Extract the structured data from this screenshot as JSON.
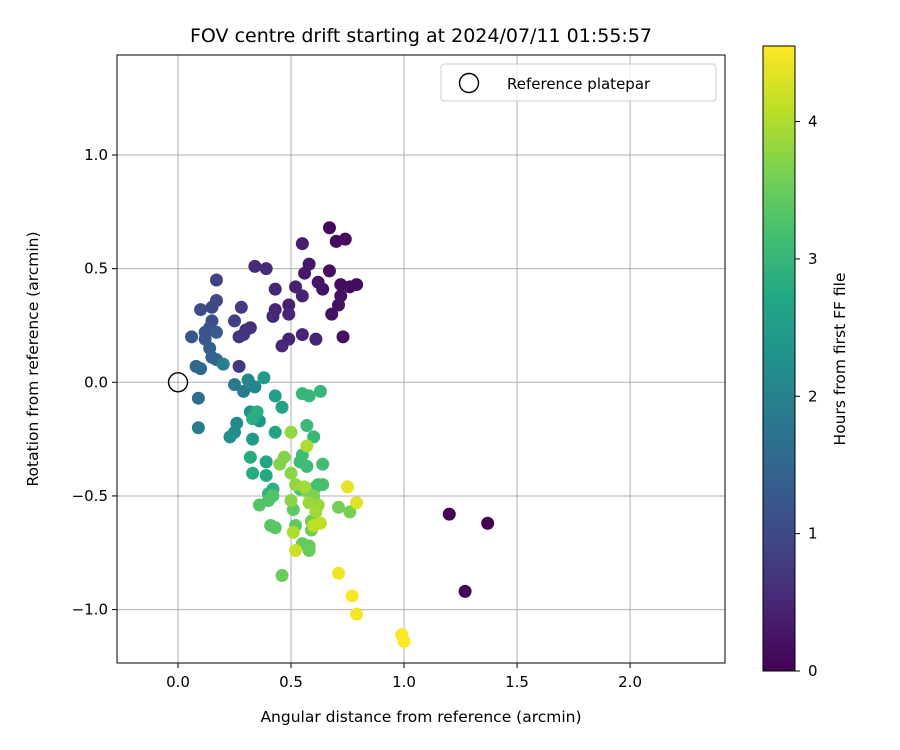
{
  "chart_data": {
    "type": "scatter",
    "title": "FOV centre drift starting at 2024/07/11 01:55:57",
    "xlabel": "Angular distance from reference (arcmin)",
    "ylabel": "Rotation from reference (arcmin)",
    "xlim": [
      -0.27,
      2.42
    ],
    "ylim": [
      -1.235,
      1.44
    ],
    "x_ticks": [
      0.0,
      0.5,
      1.0,
      1.5,
      2.0
    ],
    "x_tick_labels": [
      "0.0",
      "0.5",
      "1.0",
      "1.5",
      "2.0"
    ],
    "y_ticks": [
      -1.0,
      -0.5,
      0.0,
      0.5,
      1.0
    ],
    "y_tick_labels": [
      "−1.0",
      "−0.5",
      "0.0",
      "0.5",
      "1.0"
    ],
    "grid": true,
    "legend": {
      "placement": "top-right",
      "entries": [
        "Reference platepar"
      ]
    },
    "reference_point": {
      "x": 0.0,
      "y": 0.0,
      "marker": "hollow-circle"
    },
    "colorbar": {
      "label": "Hours from first FF file",
      "colormap": "viridis",
      "range": [
        0,
        4.55
      ],
      "ticks": [
        0,
        1,
        2,
        3,
        4
      ],
      "tick_labels": [
        "0",
        "1",
        "2",
        "3",
        "4"
      ]
    },
    "points": [
      {
        "x": 1.2,
        "y": -0.58,
        "c": 0.0
      },
      {
        "x": 1.37,
        "y": -0.62,
        "c": 0.0
      },
      {
        "x": 1.27,
        "y": -0.92,
        "c": 0.05
      },
      {
        "x": 0.67,
        "y": 0.68,
        "c": 0.1
      },
      {
        "x": 0.74,
        "y": 0.63,
        "c": 0.12
      },
      {
        "x": 0.7,
        "y": 0.62,
        "c": 0.12
      },
      {
        "x": 0.67,
        "y": 0.49,
        "c": 0.15
      },
      {
        "x": 0.72,
        "y": 0.43,
        "c": 0.15
      },
      {
        "x": 0.76,
        "y": 0.42,
        "c": 0.15
      },
      {
        "x": 0.79,
        "y": 0.43,
        "c": 0.15
      },
      {
        "x": 0.72,
        "y": 0.38,
        "c": 0.2
      },
      {
        "x": 0.71,
        "y": 0.34,
        "c": 0.2
      },
      {
        "x": 0.68,
        "y": 0.3,
        "c": 0.2
      },
      {
        "x": 0.73,
        "y": 0.2,
        "c": 0.2
      },
      {
        "x": 0.62,
        "y": 0.44,
        "c": 0.25
      },
      {
        "x": 0.64,
        "y": 0.41,
        "c": 0.25
      },
      {
        "x": 0.58,
        "y": 0.52,
        "c": 0.3
      },
      {
        "x": 0.56,
        "y": 0.48,
        "c": 0.3
      },
      {
        "x": 0.55,
        "y": 0.61,
        "c": 0.4
      },
      {
        "x": 0.55,
        "y": 0.38,
        "c": 0.4
      },
      {
        "x": 0.52,
        "y": 0.42,
        "c": 0.4
      },
      {
        "x": 0.49,
        "y": 0.34,
        "c": 0.4
      },
      {
        "x": 0.49,
        "y": 0.3,
        "c": 0.45
      },
      {
        "x": 0.55,
        "y": 0.21,
        "c": 0.45
      },
      {
        "x": 0.61,
        "y": 0.19,
        "c": 0.45
      },
      {
        "x": 0.49,
        "y": 0.19,
        "c": 0.45
      },
      {
        "x": 0.46,
        "y": 0.16,
        "c": 0.5
      },
      {
        "x": 0.43,
        "y": 0.41,
        "c": 0.5
      },
      {
        "x": 0.43,
        "y": 0.32,
        "c": 0.5
      },
      {
        "x": 0.42,
        "y": 0.29,
        "c": 0.5
      },
      {
        "x": 0.34,
        "y": 0.51,
        "c": 0.55
      },
      {
        "x": 0.39,
        "y": 0.5,
        "c": 0.55
      },
      {
        "x": 0.32,
        "y": 0.24,
        "c": 0.6
      },
      {
        "x": 0.3,
        "y": 0.23,
        "c": 0.65
      },
      {
        "x": 0.27,
        "y": 0.2,
        "c": 0.7
      },
      {
        "x": 0.29,
        "y": 0.21,
        "c": 0.7
      },
      {
        "x": 0.27,
        "y": 0.07,
        "c": 0.75
      },
      {
        "x": 0.28,
        "y": 0.33,
        "c": 0.8
      },
      {
        "x": 0.25,
        "y": 0.27,
        "c": 0.85
      },
      {
        "x": 0.17,
        "y": 0.45,
        "c": 0.9
      },
      {
        "x": 0.17,
        "y": 0.36,
        "c": 0.95
      },
      {
        "x": 0.15,
        "y": 0.33,
        "c": 1.0
      },
      {
        "x": 0.1,
        "y": 0.32,
        "c": 1.05
      },
      {
        "x": 0.15,
        "y": 0.27,
        "c": 1.1
      },
      {
        "x": 0.14,
        "y": 0.24,
        "c": 1.15
      },
      {
        "x": 0.12,
        "y": 0.22,
        "c": 1.2
      },
      {
        "x": 0.06,
        "y": 0.2,
        "c": 1.25
      },
      {
        "x": 0.12,
        "y": 0.19,
        "c": 1.25
      },
      {
        "x": 0.17,
        "y": 0.22,
        "c": 1.3
      },
      {
        "x": 0.14,
        "y": 0.15,
        "c": 1.35
      },
      {
        "x": 0.15,
        "y": 0.11,
        "c": 1.4
      },
      {
        "x": 0.17,
        "y": 0.1,
        "c": 1.45
      },
      {
        "x": 0.08,
        "y": 0.07,
        "c": 1.5
      },
      {
        "x": 0.1,
        "y": 0.06,
        "c": 1.55
      },
      {
        "x": 0.09,
        "y": -0.07,
        "c": 1.65
      },
      {
        "x": 0.25,
        "y": -0.01,
        "c": 1.8
      },
      {
        "x": 0.29,
        "y": -0.04,
        "c": 1.85
      },
      {
        "x": 0.09,
        "y": -0.2,
        "c": 1.9
      },
      {
        "x": 0.2,
        "y": 0.08,
        "c": 1.95
      },
      {
        "x": 0.31,
        "y": 0.01,
        "c": 2.05
      },
      {
        "x": 0.34,
        "y": -0.02,
        "c": 2.1
      },
      {
        "x": 0.26,
        "y": -0.18,
        "c": 2.15
      },
      {
        "x": 0.25,
        "y": -0.22,
        "c": 2.2
      },
      {
        "x": 0.23,
        "y": -0.24,
        "c": 2.25
      },
      {
        "x": 0.32,
        "y": -0.13,
        "c": 2.3
      },
      {
        "x": 0.36,
        "y": -0.17,
        "c": 2.4
      },
      {
        "x": 0.33,
        "y": -0.25,
        "c": 2.45
      },
      {
        "x": 0.38,
        "y": 0.02,
        "c": 2.5
      },
      {
        "x": 0.43,
        "y": -0.06,
        "c": 2.55
      },
      {
        "x": 0.46,
        "y": -0.11,
        "c": 2.6
      },
      {
        "x": 0.43,
        "y": -0.22,
        "c": 2.65
      },
      {
        "x": 0.39,
        "y": -0.35,
        "c": 2.7
      },
      {
        "x": 0.39,
        "y": -0.41,
        "c": 2.75
      },
      {
        "x": 0.33,
        "y": -0.4,
        "c": 2.8
      },
      {
        "x": 0.32,
        "y": -0.33,
        "c": 2.8
      },
      {
        "x": 0.35,
        "y": -0.13,
        "c": 2.85
      },
      {
        "x": 0.33,
        "y": -0.16,
        "c": 2.85
      },
      {
        "x": 0.42,
        "y": -0.47,
        "c": 2.9
      },
      {
        "x": 0.4,
        "y": -0.49,
        "c": 2.95
      },
      {
        "x": 0.55,
        "y": -0.05,
        "c": 3.0
      },
      {
        "x": 0.58,
        "y": -0.06,
        "c": 3.0
      },
      {
        "x": 0.63,
        "y": -0.04,
        "c": 3.0
      },
      {
        "x": 0.57,
        "y": -0.19,
        "c": 3.05
      },
      {
        "x": 0.6,
        "y": -0.24,
        "c": 3.05
      },
      {
        "x": 0.55,
        "y": -0.32,
        "c": 3.1
      },
      {
        "x": 0.54,
        "y": -0.35,
        "c": 3.1
      },
      {
        "x": 0.57,
        "y": -0.37,
        "c": 3.1
      },
      {
        "x": 0.64,
        "y": -0.36,
        "c": 3.15
      },
      {
        "x": 0.62,
        "y": -0.45,
        "c": 3.15
      },
      {
        "x": 0.61,
        "y": -0.46,
        "c": 3.2
      },
      {
        "x": 0.64,
        "y": -0.45,
        "c": 3.2
      },
      {
        "x": 0.54,
        "y": -0.47,
        "c": 3.25
      },
      {
        "x": 0.4,
        "y": -0.52,
        "c": 3.25
      },
      {
        "x": 0.42,
        "y": -0.5,
        "c": 3.3
      },
      {
        "x": 0.36,
        "y": -0.54,
        "c": 3.3
      },
      {
        "x": 0.41,
        "y": -0.63,
        "c": 3.35
      },
      {
        "x": 0.43,
        "y": -0.64,
        "c": 3.35
      },
      {
        "x": 0.51,
        "y": -0.56,
        "c": 3.4
      },
      {
        "x": 0.52,
        "y": -0.63,
        "c": 3.4
      },
      {
        "x": 0.55,
        "y": -0.71,
        "c": 3.45
      },
      {
        "x": 0.58,
        "y": -0.72,
        "c": 3.45
      },
      {
        "x": 0.58,
        "y": -0.74,
        "c": 3.5
      },
      {
        "x": 0.46,
        "y": -0.85,
        "c": 3.5
      },
      {
        "x": 0.59,
        "y": -0.61,
        "c": 3.55
      },
      {
        "x": 0.59,
        "y": -0.65,
        "c": 3.55
      },
      {
        "x": 0.71,
        "y": -0.55,
        "c": 3.6
      },
      {
        "x": 0.76,
        "y": -0.57,
        "c": 3.6
      },
      {
        "x": 0.57,
        "y": -0.48,
        "c": 3.65
      },
      {
        "x": 0.6,
        "y": -0.5,
        "c": 3.65
      },
      {
        "x": 0.47,
        "y": -0.33,
        "c": 3.7
      },
      {
        "x": 0.45,
        "y": -0.36,
        "c": 3.7
      },
      {
        "x": 0.5,
        "y": -0.4,
        "c": 3.75
      },
      {
        "x": 0.5,
        "y": -0.52,
        "c": 3.75
      },
      {
        "x": 0.5,
        "y": -0.22,
        "c": 3.8
      },
      {
        "x": 0.52,
        "y": -0.45,
        "c": 3.8
      },
      {
        "x": 0.58,
        "y": -0.53,
        "c": 3.85
      },
      {
        "x": 0.62,
        "y": -0.54,
        "c": 3.85
      },
      {
        "x": 0.61,
        "y": -0.57,
        "c": 3.9
      },
      {
        "x": 0.56,
        "y": -0.46,
        "c": 3.9
      },
      {
        "x": 0.57,
        "y": -0.28,
        "c": 4.0
      },
      {
        "x": 0.51,
        "y": -0.66,
        "c": 4.0
      },
      {
        "x": 0.6,
        "y": -0.63,
        "c": 4.1
      },
      {
        "x": 0.63,
        "y": -0.62,
        "c": 4.1
      },
      {
        "x": 0.52,
        "y": -0.74,
        "c": 4.2
      },
      {
        "x": 0.79,
        "y": -0.53,
        "c": 4.3
      },
      {
        "x": 0.75,
        "y": -0.46,
        "c": 4.4
      },
      {
        "x": 0.71,
        "y": -0.84,
        "c": 4.45
      },
      {
        "x": 0.77,
        "y": -0.94,
        "c": 4.5
      },
      {
        "x": 0.79,
        "y": -1.02,
        "c": 4.5
      },
      {
        "x": 0.99,
        "y": -1.11,
        "c": 4.55
      },
      {
        "x": 1.0,
        "y": -1.14,
        "c": 4.55
      }
    ]
  }
}
